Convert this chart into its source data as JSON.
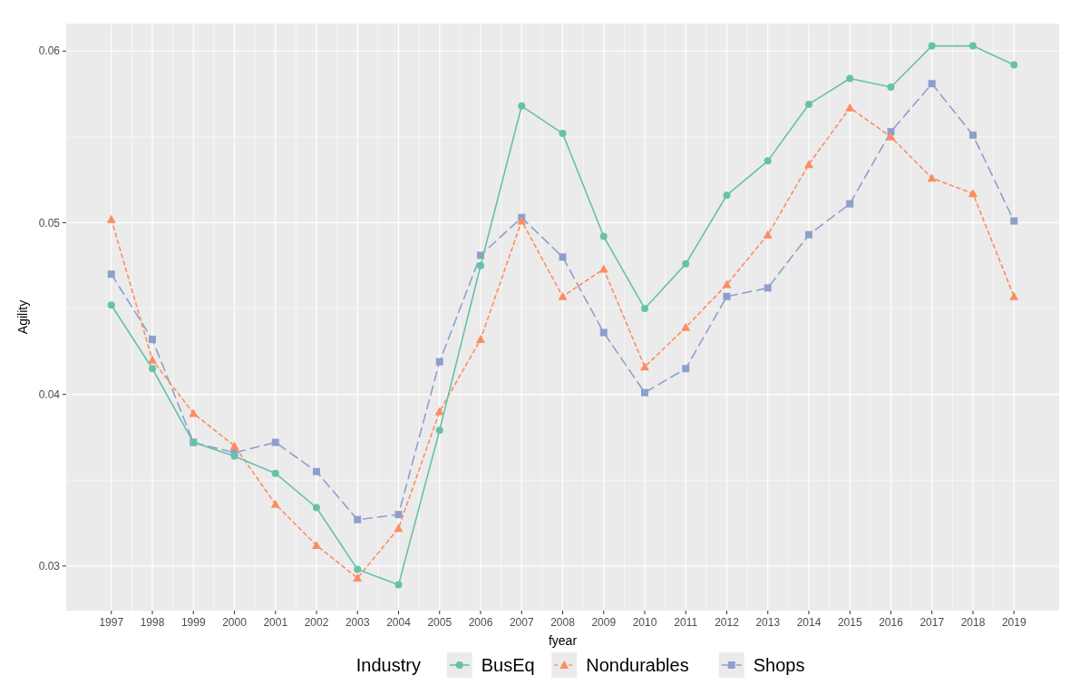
{
  "chart_data": {
    "type": "line",
    "xlabel": "fyear",
    "ylabel": "Agility",
    "legend_title": "Industry",
    "legend": "bottom",
    "grid": true,
    "x": [
      1997,
      1998,
      1999,
      2000,
      2001,
      2002,
      2003,
      2004,
      2005,
      2006,
      2007,
      2008,
      2009,
      2010,
      2011,
      2012,
      2013,
      2014,
      2015,
      2016,
      2017,
      2018,
      2019
    ],
    "xlim": [
      1995.9,
      2020.1
    ],
    "xticks": [
      1997,
      1998,
      1999,
      2000,
      2001,
      2002,
      2003,
      2004,
      2005,
      2006,
      2007,
      2008,
      2009,
      2010,
      2011,
      2012,
      2013,
      2014,
      2015,
      2016,
      2017,
      2018,
      2019
    ],
    "ylim": [
      0.0274,
      0.0616
    ],
    "yticks": [
      0.03,
      0.04,
      0.05,
      0.06
    ],
    "series": [
      {
        "name": "BusEq",
        "color": "#66c2a5",
        "marker": "circle",
        "line_style": "solid",
        "values": [
          0.0452,
          0.0415,
          0.0372,
          0.0364,
          0.0354,
          0.0334,
          0.0298,
          0.0289,
          0.0379,
          0.0475,
          0.0568,
          0.0552,
          0.0492,
          0.045,
          0.0476,
          0.0516,
          0.0536,
          0.0569,
          0.0584,
          0.0579,
          0.0603,
          0.0603,
          0.0592
        ]
      },
      {
        "name": "Nondurables",
        "color": "#fc8d62",
        "marker": "triangle",
        "line_style": "dotted",
        "values": [
          0.0502,
          0.042,
          0.0389,
          0.037,
          0.0336,
          0.0312,
          0.0293,
          0.0322,
          0.039,
          0.0432,
          0.0501,
          0.0457,
          0.0473,
          0.0416,
          0.0439,
          0.0464,
          0.0493,
          0.0534,
          0.0567,
          0.055,
          0.0526,
          0.0517,
          0.0457
        ]
      },
      {
        "name": "Shops",
        "color": "#8da0cb",
        "marker": "square",
        "line_style": "dashed",
        "values": [
          0.047,
          0.0432,
          0.0372,
          0.0366,
          0.0372,
          0.0355,
          0.0327,
          0.033,
          0.0419,
          0.0481,
          0.0503,
          0.048,
          0.0436,
          0.0401,
          0.0415,
          0.0457,
          0.0462,
          0.0493,
          0.0511,
          0.0553,
          0.0581,
          0.0551,
          0.0501
        ]
      }
    ]
  }
}
